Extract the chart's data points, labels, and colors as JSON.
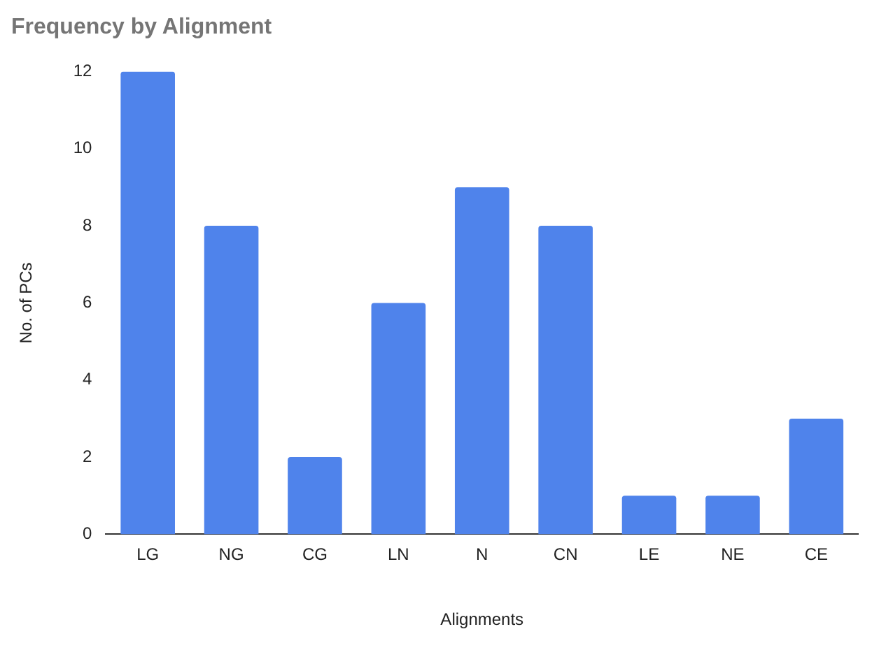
{
  "chart_data": {
    "type": "bar",
    "title": "Frequency by Alignment",
    "xlabel": "Alignments",
    "ylabel": "No. of PCs",
    "categories": [
      "LG",
      "NG",
      "CG",
      "LN",
      "N",
      "CN",
      "LE",
      "NE",
      "CE"
    ],
    "values": [
      12,
      8,
      2,
      6,
      9,
      8,
      1,
      1,
      3
    ],
    "color": "#4f83eb",
    "ylim": [
      0,
      12
    ],
    "yticks": [
      0,
      2,
      4,
      6,
      8,
      10,
      12
    ],
    "grid": false
  }
}
